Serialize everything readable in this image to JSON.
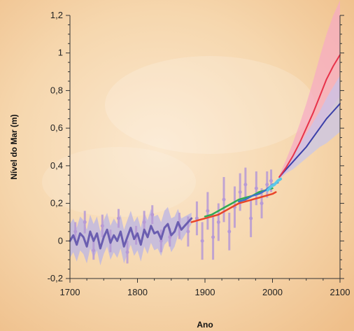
{
  "chart_data": {
    "type": "line",
    "title": "",
    "xlabel": "Ano",
    "ylabel": "Nível do Mar (m)",
    "xlim": [
      1700,
      2100
    ],
    "ylim": [
      -0.2,
      1.2
    ],
    "xticks": [
      1700,
      1800,
      1900,
      2000,
      2100
    ],
    "yticks": [
      -0.2,
      0,
      0.2,
      0.4,
      0.6,
      0.8,
      1,
      1.2
    ],
    "xtick_labels": [
      "1700",
      "1800",
      "1900",
      "2000",
      "2100"
    ],
    "ytick_labels": [
      "-0,2",
      "0",
      "0,2",
      "0,4",
      "0,6",
      "0,8",
      "1",
      "1,2"
    ],
    "grid": false,
    "colors": {
      "reconstruction": "#6b5eb0",
      "reconstruction_band": "#b9b4e6",
      "proxy_data": "#b79ad6",
      "tide_gauge_red": "#e8452a",
      "tide_gauge_green": "#2faa55",
      "tide_gauge_blue": "#3b74c8",
      "satellite": "#5bc8e8",
      "projection_high": "#e8324a",
      "projection_high_band": "#f7aac4",
      "projection_low": "#3a3fa8",
      "projection_low_band": "#c6c4ec"
    },
    "series": [
      {
        "key": "reconstruction",
        "x": [
          1700,
          1705,
          1710,
          1715,
          1720,
          1725,
          1730,
          1735,
          1740,
          1745,
          1750,
          1755,
          1760,
          1765,
          1770,
          1775,
          1780,
          1785,
          1790,
          1795,
          1800,
          1805,
          1810,
          1815,
          1820,
          1825,
          1830,
          1835,
          1840,
          1845,
          1850,
          1855,
          1860,
          1865,
          1870,
          1875,
          1880
        ],
        "y": [
          0.0,
          0.03,
          -0.02,
          0.04,
          0.02,
          -0.03,
          0.05,
          0.0,
          0.04,
          -0.04,
          0.02,
          0.06,
          -0.01,
          0.03,
          0.0,
          0.05,
          -0.03,
          0.02,
          0.07,
          0.01,
          0.04,
          -0.02,
          0.06,
          0.02,
          0.08,
          0.04,
          0.05,
          0.01,
          0.07,
          0.09,
          0.03,
          0.05,
          0.1,
          0.06,
          0.08,
          0.1,
          0.12
        ],
        "band": [
          0.09,
          0.09,
          0.09,
          0.09,
          0.09,
          0.09,
          0.09,
          0.09,
          0.09,
          0.09,
          0.09,
          0.09,
          0.09,
          0.09,
          0.09,
          0.09,
          0.09,
          0.09,
          0.09,
          0.09,
          0.09,
          0.09,
          0.09,
          0.09,
          0.09,
          0.09,
          0.09,
          0.09,
          0.09,
          0.09,
          0.09,
          0.08,
          0.07,
          0.06,
          0.05,
          0.04,
          0.03
        ]
      },
      {
        "key": "proxy_data",
        "x": [
          1708,
          1722,
          1735,
          1748,
          1760,
          1772,
          1785,
          1798,
          1810,
          1822,
          1835,
          1848,
          1862,
          1875,
          1888,
          1896,
          1904,
          1912,
          1920,
          1928,
          1936,
          1944,
          1952,
          1960,
          1968,
          1976,
          1984,
          1992,
          1998
        ],
        "y": [
          0.05,
          0.1,
          -0.05,
          0.08,
          0.0,
          0.12,
          -0.06,
          0.03,
          0.1,
          0.14,
          0.0,
          0.02,
          0.08,
          0.05,
          0.12,
          0.0,
          0.16,
          0.02,
          0.1,
          0.22,
          0.05,
          0.18,
          0.26,
          0.3,
          0.12,
          0.28,
          0.2,
          0.3,
          0.32
        ],
        "err": [
          0.05,
          0.06,
          0.05,
          0.06,
          0.06,
          0.05,
          0.06,
          0.05,
          0.06,
          0.05,
          0.06,
          0.05,
          0.07,
          0.08,
          0.09,
          0.1,
          0.1,
          0.12,
          0.1,
          0.12,
          0.1,
          0.11,
          0.1,
          0.09,
          0.1,
          0.09,
          0.08,
          0.07,
          0.06
        ]
      },
      {
        "key": "tide_gauge_red",
        "x": [
          1880,
          1890,
          1900,
          1910,
          1920,
          1930,
          1940,
          1950,
          1960,
          1970,
          1980,
          1990,
          2000,
          2005
        ],
        "y": [
          0.1,
          0.11,
          0.12,
          0.13,
          0.14,
          0.16,
          0.18,
          0.2,
          0.21,
          0.22,
          0.23,
          0.24,
          0.25,
          0.26
        ]
      },
      {
        "key": "tide_gauge_green",
        "x": [
          1900,
          1910,
          1920,
          1930,
          1940,
          1950,
          1960,
          1970,
          1980,
          1990,
          2000
        ],
        "y": [
          0.13,
          0.14,
          0.16,
          0.18,
          0.2,
          0.22,
          0.23,
          0.24,
          0.26,
          0.27,
          0.28
        ]
      },
      {
        "key": "tide_gauge_blue",
        "x": [
          1950,
          1960,
          1970,
          1980,
          1990,
          2000,
          2008
        ],
        "y": [
          0.21,
          0.22,
          0.24,
          0.25,
          0.27,
          0.3,
          0.31
        ]
      },
      {
        "key": "satellite",
        "x": [
          1993,
          1998,
          2003,
          2008,
          2012
        ],
        "y": [
          0.27,
          0.29,
          0.3,
          0.32,
          0.33
        ]
      },
      {
        "key": "projection_high",
        "x": [
          2010,
          2020,
          2030,
          2040,
          2050,
          2060,
          2070,
          2080,
          2090,
          2100
        ],
        "y": [
          0.34,
          0.39,
          0.45,
          0.52,
          0.6,
          0.68,
          0.77,
          0.86,
          0.93,
          0.99
        ],
        "lower": [
          0.33,
          0.36,
          0.4,
          0.45,
          0.5,
          0.55,
          0.6,
          0.66,
          0.72,
          0.77
        ],
        "upper": [
          0.35,
          0.43,
          0.52,
          0.62,
          0.73,
          0.85,
          0.98,
          1.1,
          1.2,
          1.28
        ]
      },
      {
        "key": "projection_low",
        "x": [
          2010,
          2020,
          2030,
          2040,
          2050,
          2060,
          2070,
          2080,
          2090,
          2100
        ],
        "y": [
          0.34,
          0.38,
          0.42,
          0.46,
          0.5,
          0.55,
          0.6,
          0.65,
          0.69,
          0.73
        ],
        "lower": [
          0.33,
          0.36,
          0.38,
          0.41,
          0.44,
          0.47,
          0.5,
          0.52,
          0.55,
          0.58
        ],
        "upper": [
          0.35,
          0.4,
          0.45,
          0.51,
          0.57,
          0.63,
          0.69,
          0.76,
          0.82,
          0.88
        ]
      }
    ]
  }
}
